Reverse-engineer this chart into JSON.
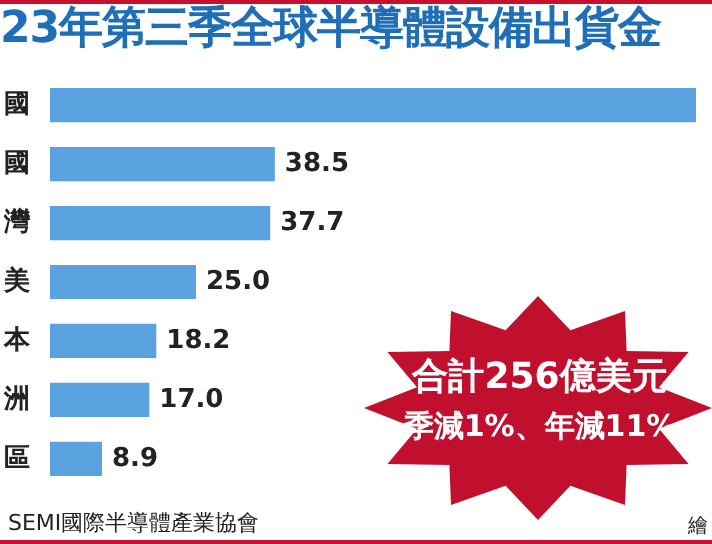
{
  "chart_data": {
    "type": "bar",
    "orientation": "horizontal",
    "title": "23年第三季全球半導體設備出貨金",
    "categories": [
      "國",
      "國",
      "灣",
      "美",
      "本",
      "洲",
      "區"
    ],
    "values": [
      110.6,
      38.5,
      37.7,
      25.0,
      18.2,
      17.0,
      8.9
    ],
    "value_labels": [
      null,
      "38.5",
      "37.7",
      "25.0",
      "18.2",
      "17.0",
      "8.9"
    ],
    "color": "#5ba3e0",
    "annotations": [
      "合計256億美元",
      "季減1%、年減11%",
      "SEMI國際半導體產業協會",
      "繪"
    ]
  }
}
